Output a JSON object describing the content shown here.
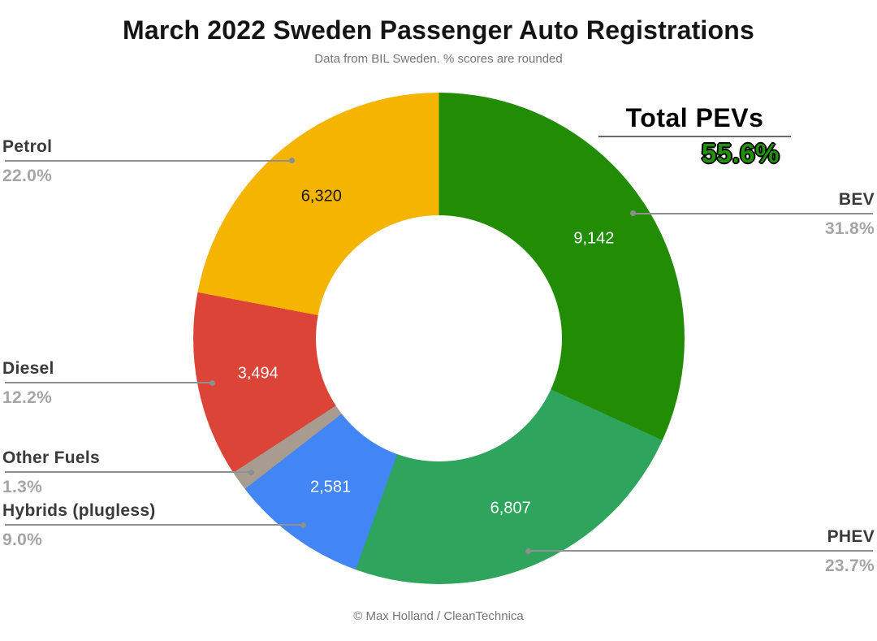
{
  "header": {
    "title": "March 2022 Sweden Passenger Auto Registrations",
    "subtitle": "Data from BIL Sweden. % scores are rounded"
  },
  "annotation": {
    "label": "Total PEVs",
    "value": "55.6%",
    "value_color": "#1f9303"
  },
  "footer": {
    "credit": "© Max Holland / CleanTechnica"
  },
  "chart_data": {
    "type": "pie",
    "subtype": "donut",
    "title": "March 2022 Sweden Passenger Auto Registrations",
    "subtitle": "Data from BIL Sweden. % scores are rounded",
    "donut_hole_ratio": 0.5,
    "start_angle_deg": 0,
    "direction": "clockwise",
    "legend_position": "callouts",
    "total_pevs_percent": 55.6,
    "slices": [
      {
        "label": "BEV",
        "percent": 31.8,
        "percent_label": "31.8%",
        "value": 9142,
        "value_label": "9,142",
        "color": "#238c05",
        "text_color": "#ffffff",
        "side": "right"
      },
      {
        "label": "PHEV",
        "percent": 23.7,
        "percent_label": "23.7%",
        "value": 6807,
        "value_label": "6,807",
        "color": "#2fa45c",
        "text_color": "#ffffff",
        "side": "right"
      },
      {
        "label": "Hybrids (plugless)",
        "percent": 9.0,
        "percent_label": "9.0%",
        "value": 2581,
        "value_label": "2,581",
        "color": "#4285f4",
        "text_color": "#ffffff",
        "side": "left"
      },
      {
        "label": "Other Fuels",
        "percent": 1.3,
        "percent_label": "1.3%",
        "value": null,
        "value_label": "",
        "color": "#a89b8f",
        "text_color": "#ffffff",
        "side": "left"
      },
      {
        "label": "Diesel",
        "percent": 12.2,
        "percent_label": "12.2%",
        "value": 3494,
        "value_label": "3,494",
        "color": "#db4437",
        "text_color": "#ffffff",
        "side": "left"
      },
      {
        "label": "Petrol",
        "percent": 22.0,
        "percent_label": "22.0%",
        "value": 6320,
        "value_label": "6,320",
        "color": "#f4b400",
        "text_color": "#1a1a1a",
        "side": "left"
      }
    ]
  }
}
